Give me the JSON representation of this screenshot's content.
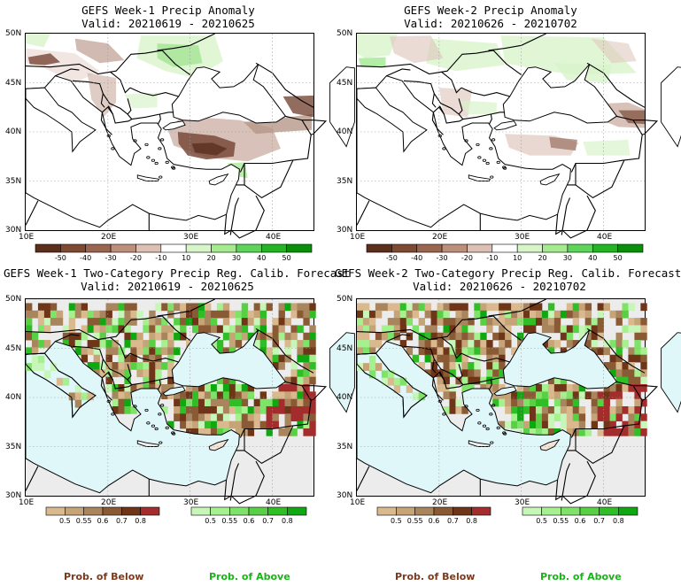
{
  "panels": [
    {
      "line1": "GEFS Week-1 Precip Anomaly",
      "line2": "Valid: 20210619 - 20210625"
    },
    {
      "line1": "GEFS Week-2 Precip Anomaly",
      "line2": "Valid: 20210626 - 20210702"
    },
    {
      "line1": "GEFS Week-1 Two-Category Precip Reg. Calib. Forecast",
      "line2": "Valid: 20210619 - 20210625"
    },
    {
      "line1": "GEFS Week-2 Two-Category Precip Reg. Calib. Forecast",
      "line2": "Valid: 20210626 - 20210702"
    }
  ],
  "lat_labels": [
    "50N",
    "45N",
    "40N",
    "35N",
    "30N"
  ],
  "lon_labels": [
    "10E",
    "20E",
    "30E",
    "40E"
  ],
  "anomaly_colorbar": {
    "labels": [
      "-50",
      "-40",
      "-30",
      "-20",
      "-10",
      "10",
      "20",
      "30",
      "40",
      "50"
    ],
    "colors": [
      "#5c2e1c",
      "#7d4a33",
      "#9a6650",
      "#bb8f7c",
      "#dcc0b4",
      "#ffffff",
      "#d7f5c8",
      "#a6ea90",
      "#5fd45a",
      "#24b424",
      "#0a8f0a"
    ]
  },
  "prob_below_colorbar": {
    "labels": [
      "0.5",
      "0.55",
      "0.6",
      "0.7",
      "0.8"
    ],
    "colors": [
      "#d9b98d",
      "#c7a477",
      "#a9855e",
      "#8a5a34",
      "#6e3519",
      "#a32d2d"
    ]
  },
  "prob_above_colorbar": {
    "labels": [
      "0.5",
      "0.55",
      "0.6",
      "0.7",
      "0.8"
    ],
    "colors": [
      "#c7f7b8",
      "#a6f08f",
      "#7fe36a",
      "#57d143",
      "#2fbe26",
      "#10a810"
    ]
  },
  "legend": {
    "below": "Prob. of Below",
    "above": "Prob. of Above"
  },
  "colors": {
    "sea": "#dff7f9",
    "land_no_data": "#ececec",
    "below_text": "#7a3a1e",
    "above_text": "#18b418"
  }
}
